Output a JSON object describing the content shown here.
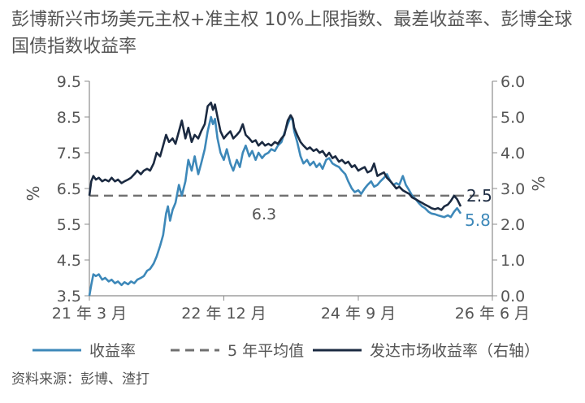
{
  "title": "彭博新兴市场美元主权+准主权 10%上限指数、最差收益率、彭博全球国债指数收益率",
  "source": "资料来源：彭博、渣打",
  "colors": {
    "yield_line": "#3d88b9",
    "avg_line": "#707070",
    "dm_line": "#1b2a41",
    "axis": "#8c8c8c",
    "text": "#555555"
  },
  "chart_data": {
    "type": "line",
    "title": "彭博新兴市场美元主权+准主权 10%上限指数、最差收益率、彭博全球国债指数收益率",
    "x_tick_labels": [
      "21 年 3 月",
      "22 年 12 月",
      "24 年 9 月",
      "26 年 6 月"
    ],
    "x_ticks": [
      "2021-03",
      "2022-12",
      "2024-09",
      "2026-06"
    ],
    "x_range": [
      "2021-03",
      "2026-06"
    ],
    "left_axis": {
      "label": "%",
      "ylim": [
        3.5,
        9.5
      ],
      "ticks": [
        "3.5",
        "4.5",
        "5.5",
        "6.5",
        "7.5",
        "8.5",
        "9.5"
      ]
    },
    "right_axis": {
      "label": "%",
      "ylim": [
        0.0,
        6.0
      ],
      "ticks": [
        "0.0",
        "1.0",
        "2.0",
        "3.0",
        "4.0",
        "5.0",
        "6.0"
      ]
    },
    "grid": false,
    "legend_position": "bottom",
    "series": [
      {
        "name": "收益率",
        "axis": "left",
        "style": "solid",
        "end_label": "5.8",
        "points": [
          [
            "2021-03-01",
            3.5
          ],
          [
            "2021-03-10",
            3.8
          ],
          [
            "2021-03-20",
            4.1
          ],
          [
            "2021-04-01",
            4.05
          ],
          [
            "2021-04-15",
            4.1
          ],
          [
            "2021-05-01",
            3.95
          ],
          [
            "2021-05-15",
            4.0
          ],
          [
            "2021-06-01",
            3.9
          ],
          [
            "2021-06-15",
            3.95
          ],
          [
            "2021-07-01",
            3.85
          ],
          [
            "2021-07-15",
            3.9
          ],
          [
            "2021-08-01",
            3.8
          ],
          [
            "2021-08-15",
            3.88
          ],
          [
            "2021-09-01",
            3.82
          ],
          [
            "2021-09-15",
            3.9
          ],
          [
            "2021-10-01",
            3.85
          ],
          [
            "2021-10-15",
            3.95
          ],
          [
            "2021-11-01",
            4.0
          ],
          [
            "2021-11-15",
            4.05
          ],
          [
            "2021-12-01",
            4.2
          ],
          [
            "2021-12-15",
            4.25
          ],
          [
            "2022-01-01",
            4.4
          ],
          [
            "2022-01-15",
            4.6
          ],
          [
            "2022-02-01",
            4.9
          ],
          [
            "2022-02-15",
            5.2
          ],
          [
            "2022-03-01",
            5.8
          ],
          [
            "2022-03-10",
            6.0
          ],
          [
            "2022-03-20",
            5.6
          ],
          [
            "2022-04-01",
            5.9
          ],
          [
            "2022-04-15",
            6.1
          ],
          [
            "2022-05-01",
            6.6
          ],
          [
            "2022-05-15",
            6.3
          ],
          [
            "2022-06-01",
            6.7
          ],
          [
            "2022-06-15",
            7.3
          ],
          [
            "2022-07-01",
            7.0
          ],
          [
            "2022-07-15",
            7.4
          ],
          [
            "2022-08-01",
            6.9
          ],
          [
            "2022-08-15",
            7.2
          ],
          [
            "2022-09-01",
            7.6
          ],
          [
            "2022-09-15",
            8.1
          ],
          [
            "2022-10-01",
            8.5
          ],
          [
            "2022-10-10",
            8.3
          ],
          [
            "2022-10-20",
            8.45
          ],
          [
            "2022-11-01",
            7.9
          ],
          [
            "2022-11-15",
            7.5
          ],
          [
            "2022-12-01",
            7.3
          ],
          [
            "2022-12-15",
            7.6
          ],
          [
            "2023-01-01",
            7.2
          ],
          [
            "2023-01-15",
            7.0
          ],
          [
            "2023-02-01",
            7.3
          ],
          [
            "2023-02-15",
            7.1
          ],
          [
            "2023-03-01",
            7.5
          ],
          [
            "2023-03-15",
            7.7
          ],
          [
            "2023-04-01",
            7.4
          ],
          [
            "2023-04-15",
            7.55
          ],
          [
            "2023-05-01",
            7.3
          ],
          [
            "2023-05-15",
            7.5
          ],
          [
            "2023-06-01",
            7.35
          ],
          [
            "2023-06-15",
            7.45
          ],
          [
            "2023-07-01",
            7.5
          ],
          [
            "2023-07-15",
            7.6
          ],
          [
            "2023-08-01",
            7.55
          ],
          [
            "2023-08-15",
            7.7
          ],
          [
            "2023-09-01",
            7.8
          ],
          [
            "2023-09-15",
            8.05
          ],
          [
            "2023-10-01",
            8.3
          ],
          [
            "2023-10-15",
            8.5
          ],
          [
            "2023-10-25",
            8.4
          ],
          [
            "2023-11-01",
            8.1
          ],
          [
            "2023-11-15",
            7.8
          ],
          [
            "2023-12-01",
            7.4
          ],
          [
            "2023-12-15",
            7.2
          ],
          [
            "2024-01-01",
            7.3
          ],
          [
            "2024-01-15",
            7.15
          ],
          [
            "2024-02-01",
            7.25
          ],
          [
            "2024-02-15",
            7.1
          ],
          [
            "2024-03-01",
            7.2
          ],
          [
            "2024-03-15",
            7.05
          ],
          [
            "2024-04-01",
            7.3
          ],
          [
            "2024-04-15",
            7.35
          ],
          [
            "2024-05-01",
            7.2
          ],
          [
            "2024-05-15",
            7.15
          ],
          [
            "2024-06-01",
            7.1
          ],
          [
            "2024-06-15",
            7.0
          ],
          [
            "2024-07-01",
            6.9
          ],
          [
            "2024-07-15",
            6.7
          ],
          [
            "2024-08-01",
            6.5
          ],
          [
            "2024-08-15",
            6.4
          ],
          [
            "2024-09-01",
            6.45
          ],
          [
            "2024-09-15",
            6.35
          ],
          [
            "2024-10-01",
            6.5
          ],
          [
            "2024-10-15",
            6.6
          ],
          [
            "2024-11-01",
            6.7
          ],
          [
            "2024-11-15",
            6.55
          ],
          [
            "2024-12-01",
            6.6
          ],
          [
            "2024-12-15",
            6.7
          ],
          [
            "2025-01-01",
            6.8
          ],
          [
            "2025-01-15",
            6.9
          ],
          [
            "2025-02-01",
            6.7
          ],
          [
            "2025-02-15",
            6.6
          ],
          [
            "2025-03-01",
            6.65
          ],
          [
            "2025-03-15",
            6.6
          ],
          [
            "2025-04-01",
            6.85
          ],
          [
            "2025-04-15",
            6.6
          ],
          [
            "2025-05-01",
            6.45
          ],
          [
            "2025-05-15",
            6.3
          ],
          [
            "2025-06-01",
            6.2
          ],
          [
            "2025-06-15",
            6.1
          ],
          [
            "2025-07-01",
            6.0
          ],
          [
            "2025-07-15",
            5.95
          ],
          [
            "2025-08-01",
            5.85
          ],
          [
            "2025-08-15",
            5.8
          ],
          [
            "2025-09-01",
            5.78
          ],
          [
            "2025-09-15",
            5.75
          ],
          [
            "2025-10-01",
            5.72
          ],
          [
            "2025-10-15",
            5.7
          ],
          [
            "2025-11-01",
            5.75
          ],
          [
            "2025-11-15",
            5.7
          ],
          [
            "2025-12-01",
            5.85
          ],
          [
            "2025-12-15",
            5.95
          ],
          [
            "2026-01-01",
            5.8
          ]
        ]
      },
      {
        "name": "5 年平均值",
        "axis": "left",
        "style": "dashed",
        "value": 6.3,
        "value_label": "6.3"
      },
      {
        "name": "发达市场收益率（右轴）",
        "axis": "right",
        "style": "solid",
        "end_label": "2.5",
        "points": [
          [
            "2021-03-01",
            2.8
          ],
          [
            "2021-03-10",
            3.2
          ],
          [
            "2021-03-20",
            3.35
          ],
          [
            "2021-04-01",
            3.25
          ],
          [
            "2021-04-15",
            3.3
          ],
          [
            "2021-05-01",
            3.2
          ],
          [
            "2021-05-15",
            3.25
          ],
          [
            "2021-06-01",
            3.2
          ],
          [
            "2021-06-15",
            3.3
          ],
          [
            "2021-07-01",
            3.2
          ],
          [
            "2021-07-15",
            3.25
          ],
          [
            "2021-08-01",
            3.15
          ],
          [
            "2021-08-15",
            3.2
          ],
          [
            "2021-09-01",
            3.25
          ],
          [
            "2021-09-15",
            3.3
          ],
          [
            "2021-10-01",
            3.4
          ],
          [
            "2021-10-15",
            3.5
          ],
          [
            "2021-11-01",
            3.4
          ],
          [
            "2021-11-15",
            3.5
          ],
          [
            "2021-12-01",
            3.55
          ],
          [
            "2021-12-15",
            3.5
          ],
          [
            "2022-01-01",
            3.7
          ],
          [
            "2022-01-15",
            4.0
          ],
          [
            "2022-02-01",
            3.9
          ],
          [
            "2022-02-15",
            4.2
          ],
          [
            "2022-03-01",
            4.5
          ],
          [
            "2022-03-15",
            4.3
          ],
          [
            "2022-04-01",
            4.4
          ],
          [
            "2022-04-15",
            4.25
          ],
          [
            "2022-05-01",
            4.6
          ],
          [
            "2022-05-15",
            4.9
          ],
          [
            "2022-06-01",
            4.4
          ],
          [
            "2022-06-15",
            4.7
          ],
          [
            "2022-07-01",
            4.3
          ],
          [
            "2022-07-15",
            4.5
          ],
          [
            "2022-08-01",
            4.4
          ],
          [
            "2022-08-15",
            4.6
          ],
          [
            "2022-09-01",
            4.8
          ],
          [
            "2022-09-15",
            5.3
          ],
          [
            "2022-10-01",
            5.4
          ],
          [
            "2022-10-10",
            5.2
          ],
          [
            "2022-10-20",
            5.35
          ],
          [
            "2022-11-01",
            5.0
          ],
          [
            "2022-11-15",
            4.6
          ],
          [
            "2022-12-01",
            4.4
          ],
          [
            "2022-12-15",
            4.5
          ],
          [
            "2023-01-01",
            4.6
          ],
          [
            "2023-01-15",
            4.4
          ],
          [
            "2023-02-01",
            4.5
          ],
          [
            "2023-02-15",
            4.6
          ],
          [
            "2023-03-01",
            4.8
          ],
          [
            "2023-03-15",
            4.5
          ],
          [
            "2023-04-01",
            4.4
          ],
          [
            "2023-04-15",
            4.3
          ],
          [
            "2023-05-01",
            4.35
          ],
          [
            "2023-05-15",
            4.2
          ],
          [
            "2023-06-01",
            4.3
          ],
          [
            "2023-06-15",
            4.2
          ],
          [
            "2023-07-01",
            4.25
          ],
          [
            "2023-07-15",
            4.2
          ],
          [
            "2023-08-01",
            4.3
          ],
          [
            "2023-08-15",
            4.25
          ],
          [
            "2023-09-01",
            4.4
          ],
          [
            "2023-09-15",
            4.5
          ],
          [
            "2023-10-01",
            4.9
          ],
          [
            "2023-10-15",
            5.05
          ],
          [
            "2023-10-25",
            4.95
          ],
          [
            "2023-11-01",
            4.7
          ],
          [
            "2023-11-15",
            4.5
          ],
          [
            "2023-12-01",
            4.3
          ],
          [
            "2023-12-15",
            4.2
          ],
          [
            "2024-01-01",
            4.1
          ],
          [
            "2024-01-15",
            4.15
          ],
          [
            "2024-02-01",
            4.05
          ],
          [
            "2024-02-15",
            4.1
          ],
          [
            "2024-03-01",
            4.0
          ],
          [
            "2024-03-15",
            4.05
          ],
          [
            "2024-04-01",
            3.9
          ],
          [
            "2024-04-15",
            4.0
          ],
          [
            "2024-05-01",
            3.85
          ],
          [
            "2024-05-15",
            3.9
          ],
          [
            "2024-06-01",
            3.75
          ],
          [
            "2024-06-15",
            3.8
          ],
          [
            "2024-07-01",
            3.7
          ],
          [
            "2024-07-15",
            3.75
          ],
          [
            "2024-08-01",
            3.6
          ],
          [
            "2024-08-15",
            3.65
          ],
          [
            "2024-09-01",
            3.5
          ],
          [
            "2024-09-15",
            3.55
          ],
          [
            "2024-10-01",
            3.6
          ],
          [
            "2024-10-15",
            3.45
          ],
          [
            "2024-11-01",
            3.5
          ],
          [
            "2024-11-15",
            3.7
          ],
          [
            "2024-12-01",
            3.35
          ],
          [
            "2024-12-15",
            3.4
          ],
          [
            "2025-01-01",
            3.45
          ],
          [
            "2025-01-15",
            3.3
          ],
          [
            "2025-02-01",
            3.2
          ],
          [
            "2025-02-15",
            3.1
          ],
          [
            "2025-03-01",
            3.0
          ],
          [
            "2025-03-15",
            3.05
          ],
          [
            "2025-04-01",
            2.95
          ],
          [
            "2025-04-15",
            2.9
          ],
          [
            "2025-05-01",
            2.85
          ],
          [
            "2025-05-15",
            2.75
          ],
          [
            "2025-06-01",
            2.7
          ],
          [
            "2025-06-15",
            2.65
          ],
          [
            "2025-07-01",
            2.6
          ],
          [
            "2025-07-15",
            2.55
          ],
          [
            "2025-08-01",
            2.5
          ],
          [
            "2025-08-15",
            2.45
          ],
          [
            "2025-09-01",
            2.42
          ],
          [
            "2025-09-15",
            2.45
          ],
          [
            "2025-10-01",
            2.4
          ],
          [
            "2025-10-15",
            2.5
          ],
          [
            "2025-11-01",
            2.55
          ],
          [
            "2025-11-15",
            2.65
          ],
          [
            "2025-12-01",
            2.8
          ],
          [
            "2025-12-15",
            2.7
          ],
          [
            "2026-01-01",
            2.5
          ]
        ]
      }
    ]
  }
}
